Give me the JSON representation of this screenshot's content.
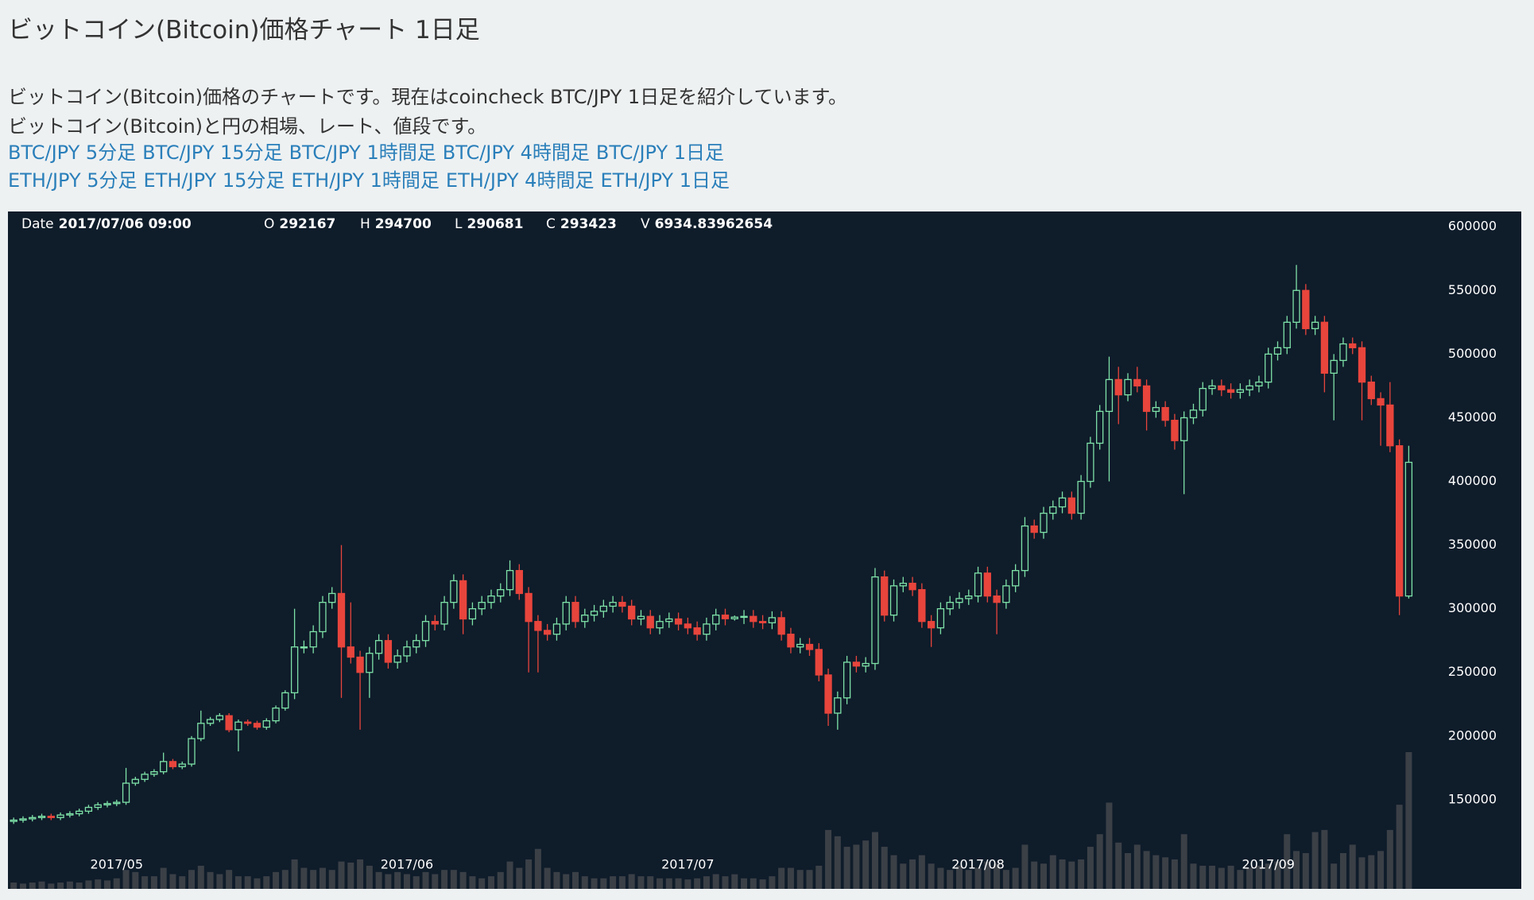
{
  "page": {
    "title": "ビットコイン(Bitcoin)価格チャート 1日足",
    "description": [
      "ビットコイン(Bitcoin)価格のチャートです。現在はcoincheck BTC/JPY 1日足を紹介しています。",
      "ビットコイン(Bitcoin)と円の相場、レート、値段です。"
    ],
    "links": [
      [
        "BTC/JPY 5分足",
        "BTC/JPY 15分足",
        "BTC/JPY 1時間足",
        "BTC/JPY 4時間足",
        "BTC/JPY 1日足"
      ],
      [
        "ETH/JPY 5分足",
        "ETH/JPY 15分足",
        "ETH/JPY 1時間足",
        "ETH/JPY 4時間足",
        "ETH/JPY 1日足"
      ]
    ]
  },
  "chart_data": {
    "type": "candlestick",
    "legend": {
      "date_label": "Date",
      "date": "2017/07/06 09:00",
      "open_label": "O",
      "high_label": "H",
      "low_label": "L",
      "close_label": "C",
      "volume_label": "V",
      "index": 77
    },
    "up_color": "#7ee2a8",
    "down_color": "#e8453c",
    "volume_color": "#3b4047",
    "background": "#0f1c2a",
    "ylim": [
      80000,
      612000
    ],
    "yticks": [
      150000,
      200000,
      250000,
      300000,
      350000,
      400000,
      450000,
      500000,
      550000,
      600000
    ],
    "categories": [
      null,
      null,
      null,
      null,
      null,
      null,
      null,
      null,
      null,
      null,
      null,
      "2017/05",
      null,
      null,
      null,
      null,
      null,
      null,
      null,
      null,
      null,
      null,
      null,
      null,
      null,
      null,
      null,
      null,
      null,
      null,
      null,
      null,
      null,
      null,
      null,
      null,
      null,
      null,
      null,
      null,
      null,
      null,
      "2017/06",
      null,
      null,
      null,
      null,
      null,
      null,
      null,
      null,
      null,
      null,
      null,
      null,
      null,
      null,
      null,
      null,
      null,
      null,
      null,
      null,
      null,
      null,
      null,
      null,
      null,
      null,
      null,
      null,
      null,
      "2017/07",
      null,
      null,
      null,
      null,
      null,
      null,
      null,
      null,
      null,
      null,
      null,
      null,
      null,
      null,
      null,
      null,
      null,
      null,
      null,
      null,
      null,
      null,
      null,
      null,
      null,
      null,
      null,
      null,
      null,
      null,
      "2017/08",
      null,
      null,
      null,
      null,
      null,
      null,
      null,
      null,
      null,
      null,
      null,
      null,
      null,
      null,
      null,
      null,
      null,
      null,
      null,
      null,
      null,
      null,
      null,
      null,
      null,
      null,
      null,
      null,
      null,
      null,
      "2017/09",
      null,
      null,
      null,
      null,
      null,
      null,
      null,
      null,
      null,
      null,
      null,
      null,
      null,
      null,
      null
    ],
    "open": [
      133000,
      134000,
      135000,
      136000,
      137000,
      136000,
      138000,
      139000,
      141000,
      144000,
      146000,
      147000,
      148000,
      163000,
      166000,
      170000,
      172000,
      180000,
      176000,
      178000,
      198000,
      210000,
      213000,
      216000,
      205000,
      211000,
      210000,
      207000,
      212000,
      222000,
      234000,
      270000,
      270000,
      282000,
      305000,
      312000,
      270000,
      262000,
      250000,
      265000,
      275000,
      258000,
      263000,
      270000,
      275000,
      290000,
      288000,
      305000,
      322000,
      292000,
      300000,
      305000,
      310000,
      315000,
      330000,
      312000,
      290000,
      283000,
      280000,
      288000,
      305000,
      290000,
      295000,
      298000,
      302000,
      305000,
      302000,
      292000,
      294000,
      285000,
      290000,
      292000,
      288000,
      285000,
      280000,
      288000,
      295000,
      292167,
      293423,
      294000,
      290000,
      289000,
      293000,
      280000,
      270000,
      272000,
      268000,
      248000,
      218000,
      230000,
      258000,
      255000,
      257000,
      325000,
      295000,
      318000,
      320000,
      315000,
      290000,
      285000,
      300000,
      305000,
      308000,
      310000,
      328000,
      310000,
      305000,
      318000,
      330000,
      365000,
      360000,
      375000,
      380000,
      387000,
      375000,
      400000,
      430000,
      455000,
      480000,
      468000,
      480000,
      475000,
      455000,
      458000,
      448000,
      432000,
      450000,
      456000,
      473000,
      475000,
      472000,
      470000,
      472000,
      475000,
      478000,
      500000,
      505000,
      525000,
      550000,
      520000,
      525000,
      485000,
      495000,
      508000,
      505000,
      478000,
      465000,
      460000,
      428000,
      310000
    ],
    "high": [
      136000,
      137000,
      138000,
      139000,
      139000,
      140000,
      141000,
      143000,
      146000,
      148000,
      149000,
      150000,
      175000,
      168000,
      172000,
      174000,
      187000,
      182000,
      180000,
      200000,
      220000,
      215000,
      218000,
      218000,
      213000,
      213000,
      212000,
      214000,
      224000,
      236000,
      300000,
      275000,
      287000,
      310000,
      317000,
      350000,
      305000,
      267000,
      270000,
      280000,
      280000,
      268000,
      275000,
      280000,
      295000,
      295000,
      310000,
      327000,
      327000,
      305000,
      310000,
      315000,
      320000,
      338000,
      335000,
      317000,
      295000,
      288000,
      293000,
      310000,
      310000,
      300000,
      303000,
      307000,
      310000,
      310000,
      307000,
      299000,
      299000,
      295000,
      297000,
      297000,
      293000,
      290000,
      293000,
      300000,
      300000,
      294700,
      299000,
      299000,
      295000,
      298000,
      298000,
      285000,
      277000,
      277000,
      273000,
      253000,
      235000,
      263000,
      263000,
      262000,
      332000,
      330000,
      323000,
      325000,
      325000,
      320000,
      295000,
      305000,
      310000,
      313000,
      315000,
      333000,
      333000,
      315000,
      323000,
      335000,
      372000,
      370000,
      380000,
      385000,
      392000,
      392000,
      405000,
      435000,
      460000,
      498000,
      490000,
      485000,
      490000,
      480000,
      463000,
      463000,
      453000,
      455000,
      461000,
      478000,
      480000,
      480000,
      477000,
      477000,
      480000,
      483000,
      505000,
      510000,
      530000,
      570000,
      555000,
      530000,
      530000,
      500000,
      513000,
      513000,
      510000,
      483000,
      470000,
      478000,
      433000,
      428000
    ],
    "low": [
      131000,
      132000,
      133000,
      134000,
      134000,
      134000,
      136000,
      137000,
      139000,
      142000,
      144000,
      145000,
      146000,
      161000,
      164000,
      168000,
      170000,
      174000,
      174000,
      176000,
      196000,
      208000,
      211000,
      203000,
      188000,
      208000,
      205000,
      205000,
      210000,
      220000,
      229000,
      265000,
      265000,
      277000,
      300000,
      230000,
      257000,
      205000,
      230000,
      260000,
      253000,
      253000,
      258000,
      265000,
      270000,
      283000,
      283000,
      300000,
      280000,
      287000,
      295000,
      300000,
      305000,
      310000,
      307000,
      250000,
      250000,
      275000,
      275000,
      283000,
      285000,
      285000,
      290000,
      293000,
      297000,
      297000,
      287000,
      287000,
      280000,
      280000,
      285000,
      283000,
      280000,
      275000,
      275000,
      283000,
      287000,
      290681,
      288000,
      285000,
      284000,
      284000,
      275000,
      265000,
      265000,
      263000,
      243000,
      208000,
      205000,
      225000,
      250000,
      250000,
      252000,
      290000,
      290000,
      313000,
      310000,
      285000,
      270000,
      280000,
      295000,
      300000,
      303000,
      305000,
      305000,
      280000,
      300000,
      313000,
      325000,
      355000,
      355000,
      370000,
      375000,
      370000,
      370000,
      395000,
      425000,
      400000,
      445000,
      463000,
      470000,
      440000,
      450000,
      443000,
      425000,
      390000,
      445000,
      451000,
      468000,
      467000,
      465000,
      465000,
      467000,
      470000,
      473000,
      495000,
      500000,
      520000,
      515000,
      515000,
      470000,
      448000,
      490000,
      500000,
      448000,
      460000,
      428000,
      423000,
      295000,
      308000
    ],
    "close": [
      134000,
      135000,
      136000,
      137000,
      136000,
      138000,
      139000,
      141000,
      144000,
      146000,
      147000,
      148000,
      163000,
      166000,
      170000,
      172000,
      180000,
      176000,
      178000,
      198000,
      210000,
      213000,
      216000,
      205000,
      211000,
      210000,
      207000,
      212000,
      222000,
      234000,
      270000,
      270000,
      282000,
      305000,
      312000,
      270000,
      262000,
      250000,
      265000,
      275000,
      258000,
      263000,
      270000,
      275000,
      290000,
      288000,
      305000,
      322000,
      292000,
      300000,
      305000,
      310000,
      315000,
      330000,
      312000,
      290000,
      283000,
      280000,
      288000,
      305000,
      290000,
      295000,
      298000,
      302000,
      305000,
      302000,
      292000,
      294000,
      285000,
      290000,
      292000,
      288000,
      285000,
      280000,
      288000,
      295000,
      292167,
      293423,
      294000,
      290000,
      289000,
      293000,
      280000,
      270000,
      272000,
      268000,
      248000,
      218000,
      230000,
      258000,
      255000,
      257000,
      325000,
      295000,
      318000,
      320000,
      315000,
      290000,
      285000,
      300000,
      305000,
      308000,
      310000,
      328000,
      310000,
      305000,
      318000,
      330000,
      365000,
      360000,
      375000,
      380000,
      387000,
      375000,
      400000,
      430000,
      455000,
      480000,
      468000,
      480000,
      475000,
      455000,
      458000,
      448000,
      432000,
      450000,
      456000,
      473000,
      475000,
      472000,
      470000,
      472000,
      475000,
      478000,
      500000,
      505000,
      525000,
      550000,
      520000,
      525000,
      485000,
      495000,
      508000,
      505000,
      478000,
      465000,
      460000,
      428000,
      310000,
      415000
    ],
    "volume": [
      3000,
      2500,
      3000,
      3500,
      2500,
      3000,
      3500,
      3000,
      4000,
      4500,
      4000,
      5000,
      9000,
      8000,
      6000,
      6000,
      10000,
      7000,
      6000,
      9000,
      11000,
      8000,
      7000,
      9000,
      6000,
      6000,
      5000,
      6000,
      8000,
      9000,
      14000,
      10000,
      9000,
      10000,
      9000,
      13000,
      12500,
      14000,
      11000,
      8000,
      7000,
      8000,
      7000,
      6000,
      8000,
      7000,
      9000,
      9000,
      8000,
      6000,
      5000,
      6000,
      8000,
      13000,
      10000,
      14000,
      19000,
      10000,
      8000,
      7000,
      8000,
      6000,
      5000,
      5000,
      6000,
      6000,
      7000,
      6000,
      6000,
      5000,
      5000,
      5000,
      4500,
      5000,
      6000,
      7000,
      6000,
      6934.83962654,
      5000,
      5000,
      4500,
      6000,
      10000,
      10000,
      9000,
      9000,
      11000,
      28000,
      25000,
      20000,
      21000,
      23000,
      27000,
      20000,
      16000,
      12000,
      14000,
      16000,
      12000,
      10000,
      9000,
      11000,
      9000,
      10000,
      13000,
      12000,
      9000,
      10000,
      21000,
      13000,
      12000,
      16000,
      14000,
      13000,
      14000,
      20000,
      26000,
      41000,
      22000,
      17000,
      21000,
      18000,
      16000,
      15000,
      14000,
      26000,
      12000,
      11000,
      11000,
      10000,
      11000,
      9000,
      10000,
      11000,
      12000,
      13000,
      26000,
      18000,
      17000,
      27000,
      28000,
      12000,
      17000,
      21000,
      15000,
      16000,
      18000,
      28000,
      40000,
      65000
    ]
  }
}
